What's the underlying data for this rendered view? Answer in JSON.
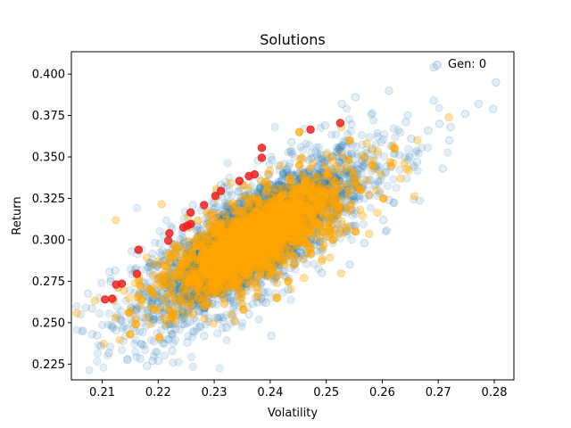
{
  "chart_data": {
    "type": "scatter",
    "title": "Solutions",
    "xlabel": "Volatility",
    "ylabel": "Return",
    "xlim": [
      0.2045,
      0.2835
    ],
    "ylim": [
      0.2155,
      0.4135
    ],
    "x_ticks": [
      "0.21",
      "0.22",
      "0.23",
      "0.24",
      "0.25",
      "0.26",
      "0.27",
      "0.28"
    ],
    "y_ticks": [
      "0.225",
      "0.250",
      "0.275",
      "0.300",
      "0.325",
      "0.350",
      "0.375",
      "0.400"
    ],
    "x_tick_values": [
      0.21,
      0.22,
      0.23,
      0.24,
      0.25,
      0.26,
      0.27,
      0.28
    ],
    "y_tick_values": [
      0.225,
      0.25,
      0.275,
      0.3,
      0.325,
      0.35,
      0.375,
      0.4
    ],
    "grid": false,
    "legend": {
      "placement": "top-right",
      "entries": [
        {
          "label": "Gen: 0",
          "color": "#1f77b4"
        }
      ]
    },
    "series": [
      {
        "color": "#1f77b4",
        "alpha": 0.12,
        "description_role": "all random portfolios",
        "points": [
          [
            0.2075,
            0.2675
          ],
          [
            0.2082,
            0.2586
          ],
          [
            0.2091,
            0.2423
          ],
          [
            0.2082,
            0.243
          ],
          [
            0.2112,
            0.2318
          ],
          [
            0.2098,
            0.2359
          ],
          [
            0.2125,
            0.2455
          ],
          [
            0.2145,
            0.2275
          ],
          [
            0.2168,
            0.2283
          ],
          [
            0.219,
            0.227
          ],
          [
            0.218,
            0.224
          ],
          [
            0.22,
            0.227
          ],
          [
            0.2225,
            0.233
          ],
          [
            0.2115,
            0.2748
          ],
          [
            0.2123,
            0.2815
          ],
          [
            0.2165,
            0.2938
          ],
          [
            0.2198,
            0.2845
          ],
          [
            0.2262,
            0.321
          ],
          [
            0.2312,
            0.333
          ],
          [
            0.2378,
            0.3478
          ],
          [
            0.2438,
            0.359
          ],
          [
            0.2498,
            0.369
          ],
          [
            0.2528,
            0.382
          ],
          [
            0.2552,
            0.386
          ],
          [
            0.2612,
            0.39
          ],
          [
            0.2642,
            0.371
          ],
          [
            0.2682,
            0.366
          ],
          [
            0.2702,
            0.37
          ],
          [
            0.2722,
            0.368
          ],
          [
            0.2748,
            0.376
          ],
          [
            0.2772,
            0.382
          ],
          [
            0.2803,
            0.395
          ],
          [
            0.2798,
            0.379
          ],
          [
            0.272,
            0.36
          ],
          [
            0.2708,
            0.343
          ],
          [
            0.2692,
            0.384
          ],
          [
            0.2652,
            0.361
          ],
          [
            0.2612,
            0.324
          ],
          [
            0.2602,
            0.312
          ],
          [
            0.2568,
            0.298
          ],
          [
            0.2542,
            0.285
          ],
          [
            0.2492,
            0.28
          ],
          [
            0.2432,
            0.27
          ],
          [
            0.2392,
            0.262
          ],
          [
            0.2362,
            0.255
          ],
          [
            0.2322,
            0.247
          ],
          [
            0.2282,
            0.242
          ],
          [
            0.2252,
            0.238
          ],
          [
            0.2402,
            0.242
          ],
          [
            0.2692,
            0.404
          ],
          [
            0.2662,
            0.347
          ],
          [
            0.2582,
            0.355
          ]
        ]
      },
      {
        "color": "#ffa500",
        "alpha": 0.7,
        "description_role": "current generation",
        "points": [
          [
            0.215,
            0.243
          ],
          [
            0.216,
            0.249
          ],
          [
            0.2148,
            0.256
          ],
          [
            0.217,
            0.264
          ],
          [
            0.2185,
            0.27
          ],
          [
            0.2202,
            0.241
          ],
          [
            0.2225,
            0.254
          ],
          [
            0.221,
            0.276
          ],
          [
            0.2242,
            0.285
          ],
          [
            0.2262,
            0.295
          ],
          [
            0.2282,
            0.26
          ],
          [
            0.2302,
            0.275
          ],
          [
            0.2322,
            0.29
          ],
          [
            0.2342,
            0.305
          ],
          [
            0.2362,
            0.28
          ],
          [
            0.2382,
            0.315
          ],
          [
            0.2402,
            0.3
          ],
          [
            0.2422,
            0.32
          ],
          [
            0.2442,
            0.29
          ],
          [
            0.2462,
            0.33
          ],
          [
            0.2482,
            0.31
          ],
          [
            0.2502,
            0.34
          ],
          [
            0.2522,
            0.32
          ],
          [
            0.2542,
            0.36
          ],
          [
            0.2562,
            0.33
          ],
          [
            0.2582,
            0.345
          ],
          [
            0.2602,
            0.325
          ],
          [
            0.2622,
            0.355
          ],
          [
            0.2452,
            0.365
          ],
          [
            0.2412,
            0.265
          ],
          [
            0.2352,
            0.258
          ],
          [
            0.2272,
            0.265
          ],
          [
            0.2232,
            0.295
          ],
          [
            0.2312,
            0.31
          ],
          [
            0.2392,
            0.335
          ],
          [
            0.2432,
            0.275
          ],
          [
            0.2472,
            0.295
          ],
          [
            0.2512,
            0.3
          ],
          [
            0.2552,
            0.305
          ],
          [
            0.2452,
            0.345
          ]
        ]
      },
      {
        "color": "#ee2222",
        "alpha": 0.85,
        "description_role": "efficient frontier",
        "points": [
          [
            0.2105,
            0.264
          ],
          [
            0.2118,
            0.2645
          ],
          [
            0.2125,
            0.273
          ],
          [
            0.2135,
            0.2735
          ],
          [
            0.2162,
            0.2795
          ],
          [
            0.2165,
            0.294
          ],
          [
            0.2218,
            0.2995
          ],
          [
            0.222,
            0.304
          ],
          [
            0.2245,
            0.3075
          ],
          [
            0.2252,
            0.3085
          ],
          [
            0.2258,
            0.3095
          ],
          [
            0.2258,
            0.3165
          ],
          [
            0.2282,
            0.321
          ],
          [
            0.2302,
            0.3265
          ],
          [
            0.2312,
            0.3295
          ],
          [
            0.2345,
            0.3355
          ],
          [
            0.2362,
            0.3385
          ],
          [
            0.2372,
            0.3395
          ],
          [
            0.2385,
            0.3495
          ],
          [
            0.2385,
            0.3555
          ],
          [
            0.2472,
            0.3665
          ],
          [
            0.2525,
            0.3705
          ]
        ]
      }
    ]
  }
}
